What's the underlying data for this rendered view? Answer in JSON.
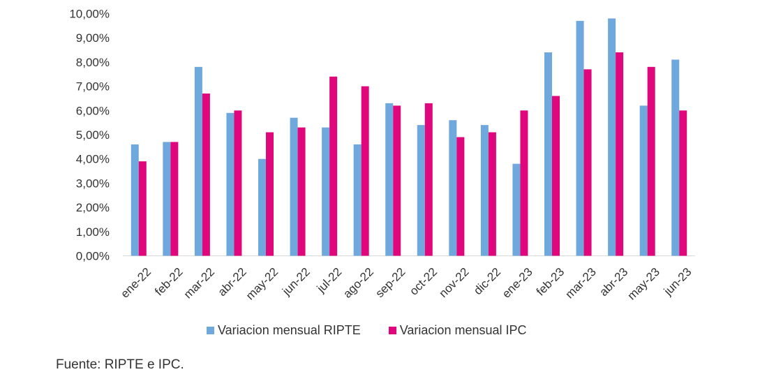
{
  "chart_data": {
    "type": "bar",
    "categories": [
      "ene-22",
      "feb-22",
      "mar-22",
      "abr-22",
      "may-22",
      "jun-22",
      "jul-22",
      "ago-22",
      "sep-22",
      "oct-22",
      "nov-22",
      "dic-22",
      "ene-23",
      "feb-23",
      "mar-23",
      "abr-23",
      "may-23",
      "jun-23"
    ],
    "series": [
      {
        "name": "Variacion mensual RIPTE",
        "color": "#6fa8dc",
        "values": [
          4.6,
          4.7,
          7.8,
          5.9,
          4.0,
          5.7,
          5.3,
          4.6,
          6.3,
          5.4,
          5.6,
          5.4,
          3.8,
          8.4,
          9.7,
          9.8,
          6.2,
          8.1
        ]
      },
      {
        "name": "Variacion mensual IPC",
        "color": "#e0077d",
        "values": [
          3.9,
          4.7,
          6.7,
          6.0,
          5.1,
          5.3,
          7.4,
          7.0,
          6.2,
          6.3,
          4.9,
          5.1,
          6.0,
          6.6,
          7.7,
          8.4,
          7.8,
          6.0
        ]
      }
    ],
    "ylim": [
      0,
      10
    ],
    "yticks": [
      "0,00%",
      "1,00%",
      "2,00%",
      "3,00%",
      "4,00%",
      "5,00%",
      "6,00%",
      "7,00%",
      "8,00%",
      "9,00%",
      "10,00%"
    ],
    "grid": false,
    "legend_position": "bottom"
  },
  "source_note": "Fuente: RIPTE e IPC."
}
